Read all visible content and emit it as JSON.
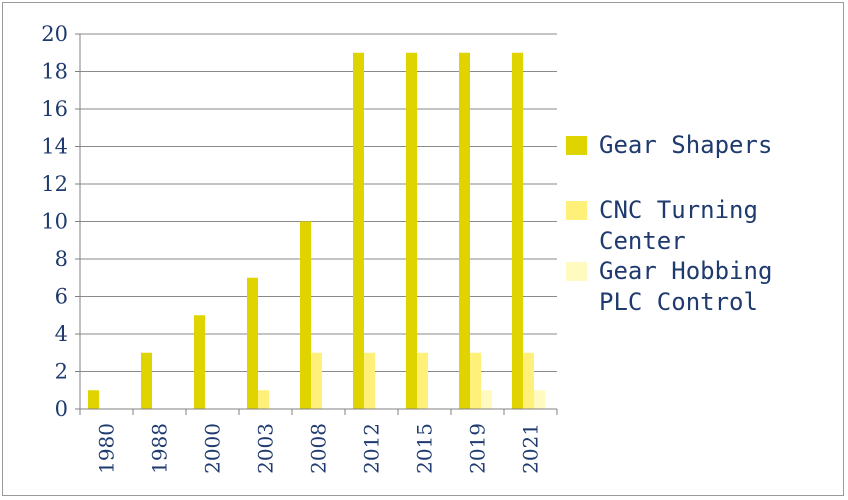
{
  "chart_data": {
    "type": "bar",
    "title": "",
    "xlabel": "",
    "ylabel": "",
    "categories": [
      "1980",
      "1988",
      "2000",
      "2003",
      "2008",
      "2012",
      "2015",
      "2019",
      "2021"
    ],
    "ylim": [
      0,
      20
    ],
    "yticks": [
      0,
      2,
      4,
      6,
      8,
      10,
      12,
      14,
      16,
      18,
      20
    ],
    "grid": true,
    "legend_position": "right",
    "series": [
      {
        "name": "Gear Shapers",
        "color": "#e0d400",
        "values": [
          1,
          3,
          5,
          7,
          10,
          19,
          19,
          19,
          19
        ]
      },
      {
        "name": "CNC Turning Center",
        "color": "#fff07a",
        "values": [
          0,
          0,
          0,
          1,
          3,
          3,
          3,
          3,
          3
        ]
      },
      {
        "name": "Gear Hobbing PLC Control",
        "color": "#fffabf",
        "values": [
          0,
          0,
          0,
          0,
          0,
          0,
          0,
          1,
          1
        ]
      }
    ]
  },
  "legend": {
    "items": [
      {
        "lines": [
          "Gear Shapers"
        ]
      },
      {
        "lines": [
          "CNC Turning",
          "Center"
        ]
      },
      {
        "lines": [
          "Gear Hobbing",
          "PLC Control"
        ]
      }
    ]
  }
}
